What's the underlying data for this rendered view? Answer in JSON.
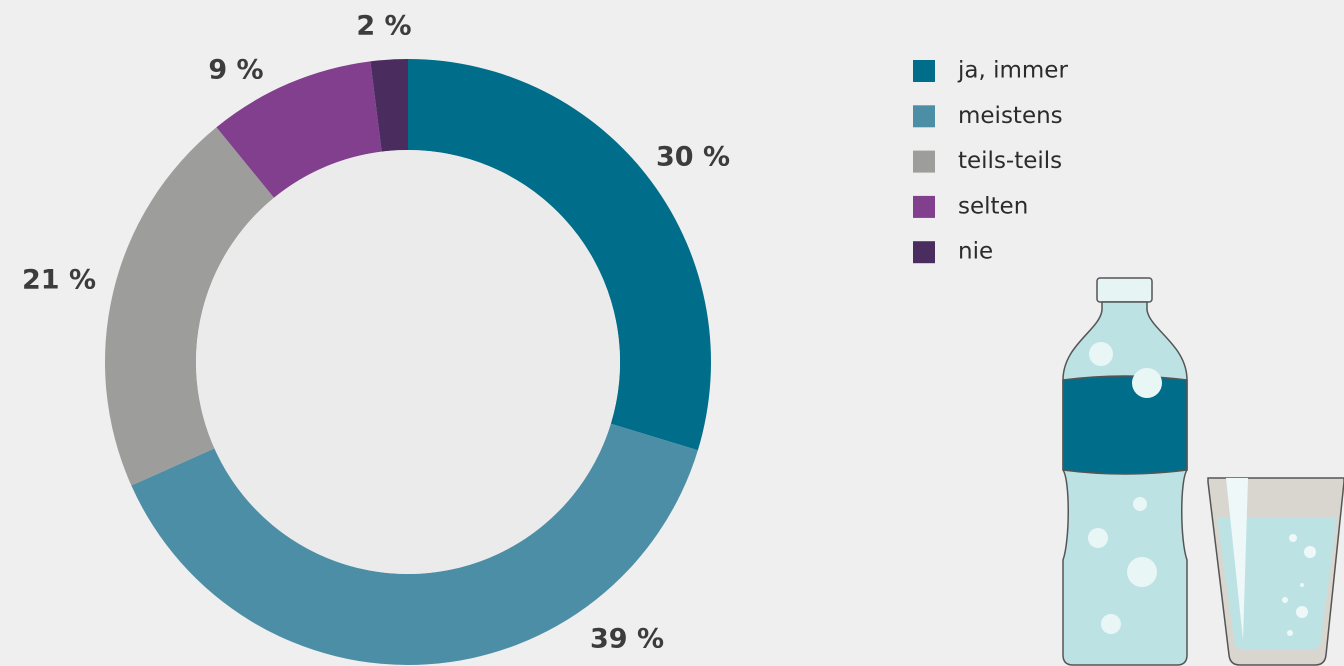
{
  "chart_data": {
    "type": "donut",
    "categories": [
      "ja, immer",
      "meistens",
      "teils-teils",
      "selten",
      "nie"
    ],
    "values": [
      30,
      39,
      21,
      9,
      2
    ],
    "value_labels": [
      "30 %",
      "39 %",
      "21 %",
      "9 %",
      "2 %"
    ],
    "colors": [
      "#006e8a",
      "#4d8ea7",
      "#9d9d9b",
      "#823f8e",
      "#4a2d5e"
    ],
    "legend": "top-right"
  }
}
